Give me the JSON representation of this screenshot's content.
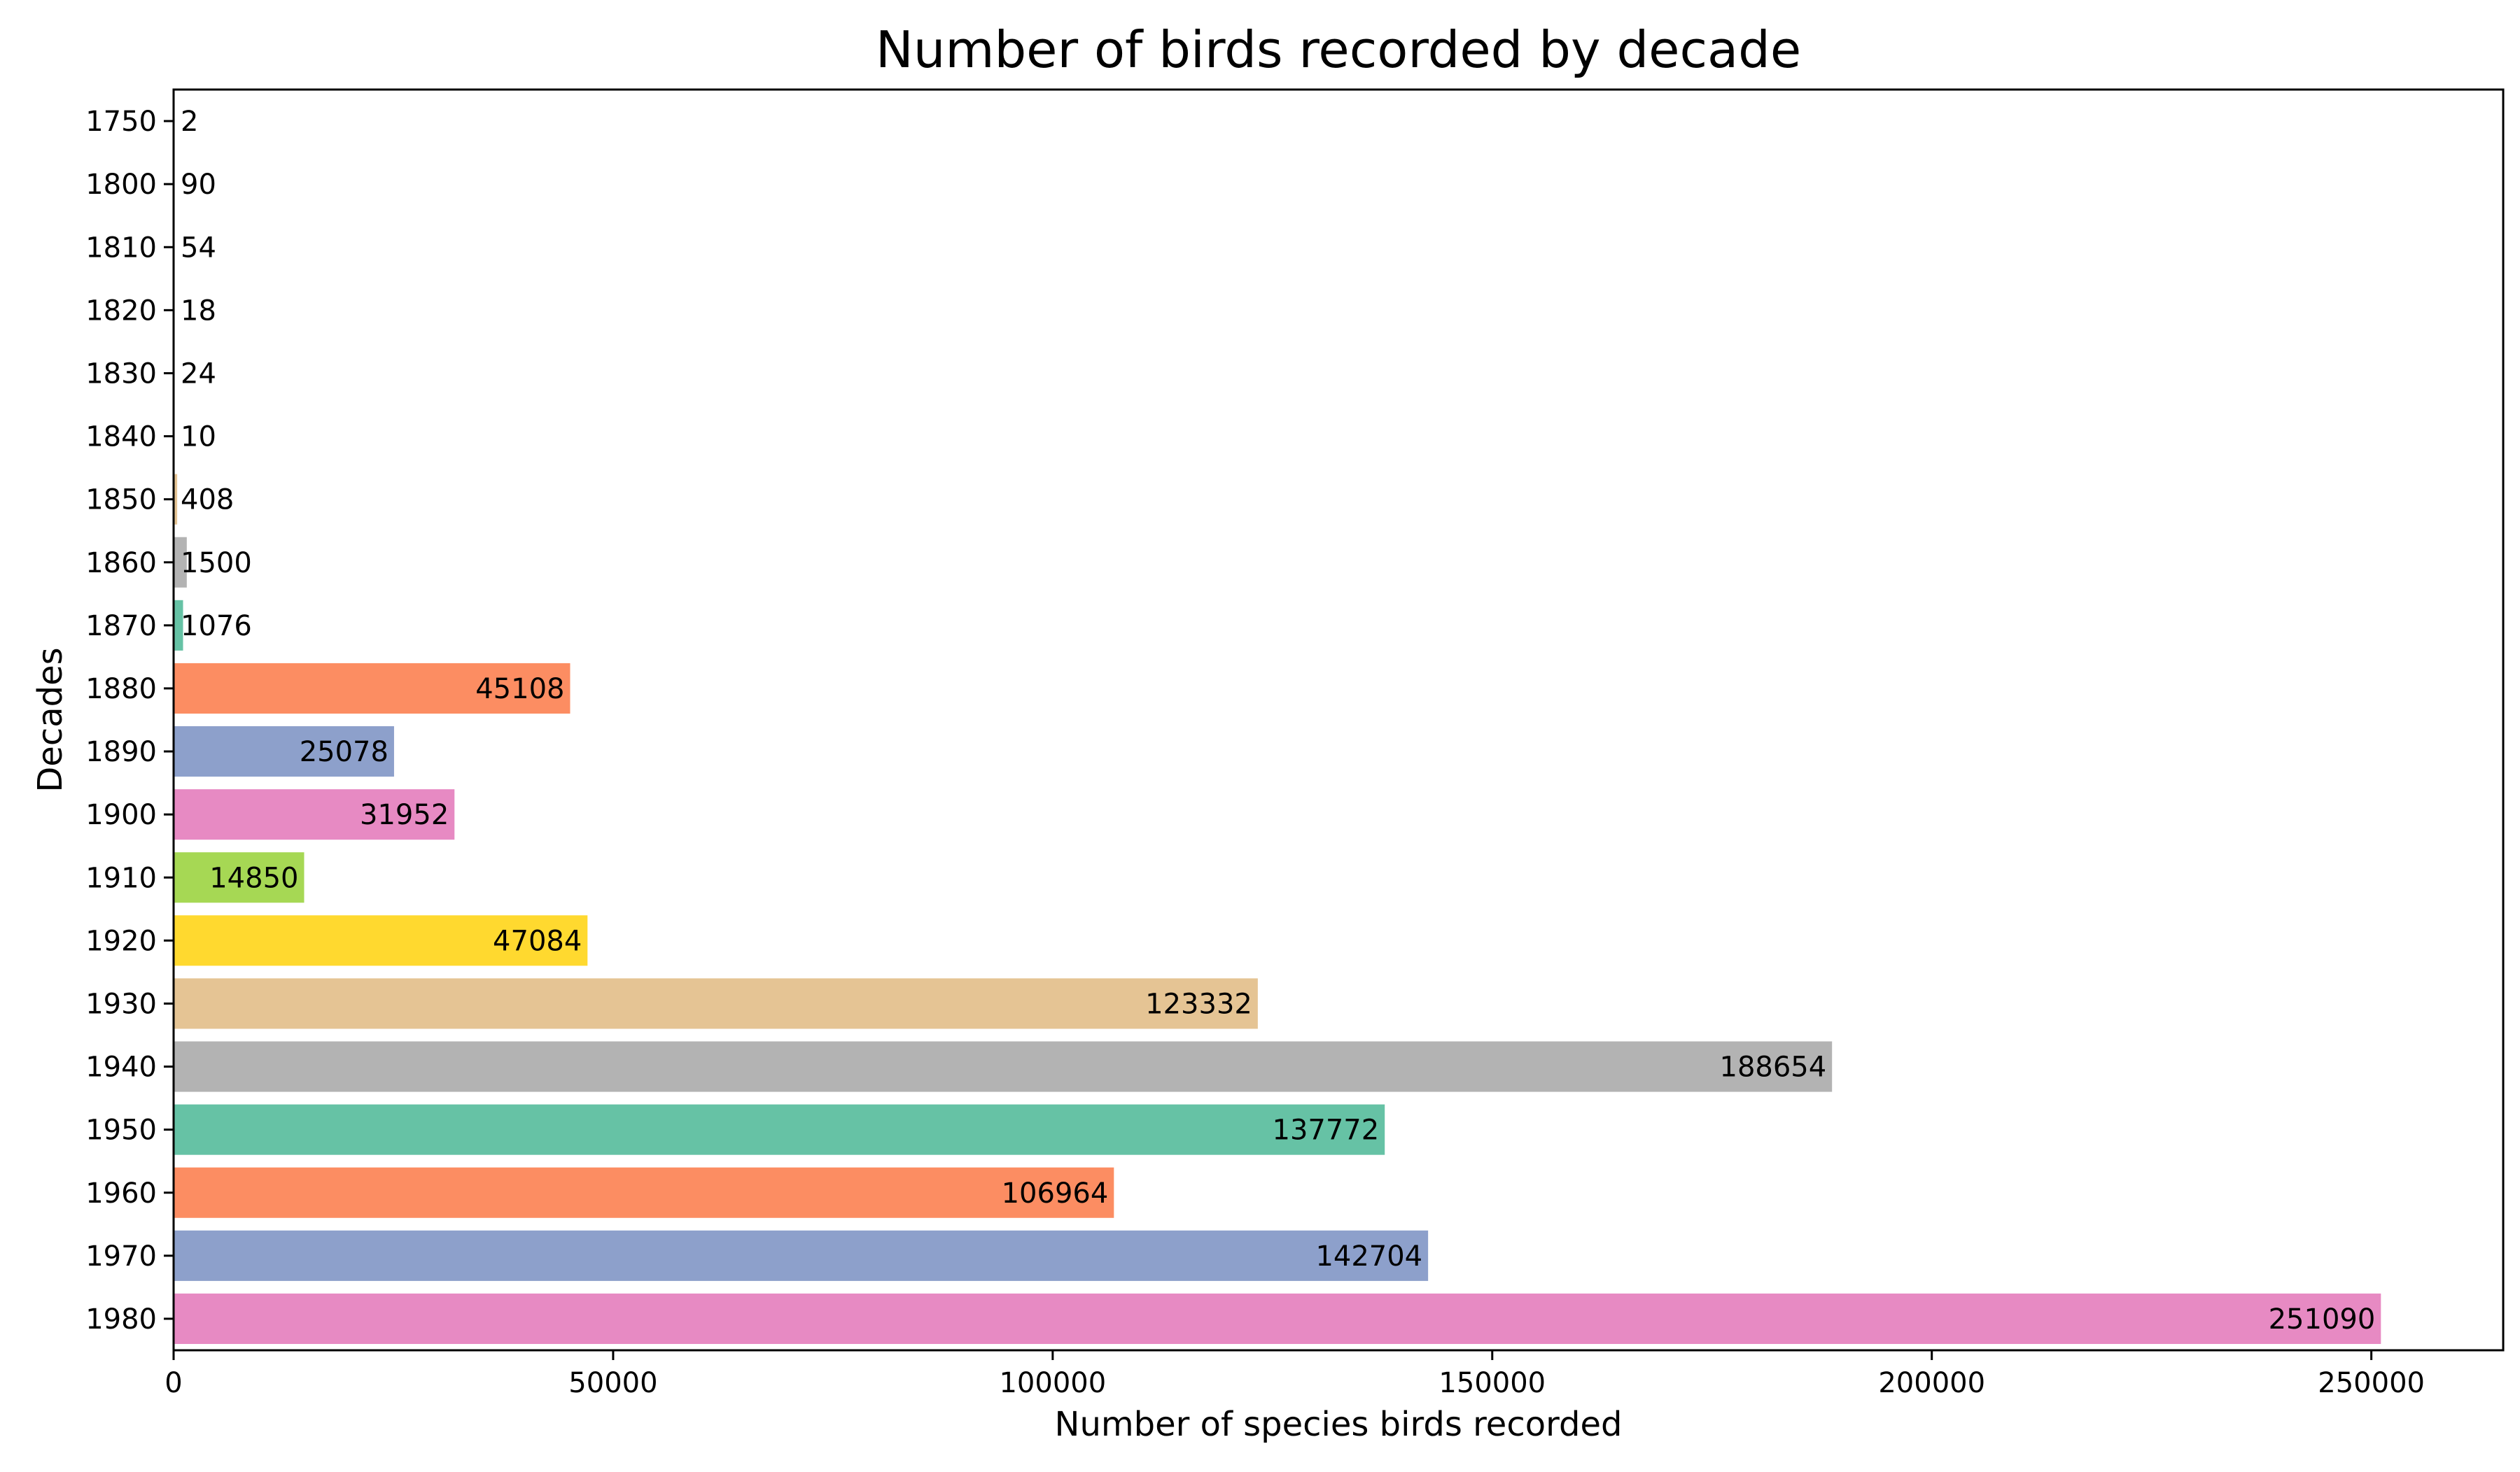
{
  "chart_data": {
    "type": "bar",
    "orientation": "horizontal",
    "title": "Number of birds recorded by decade",
    "xlabel": "Number of species birds recorded",
    "ylabel": "Decades",
    "xlim": [
      0,
      265000
    ],
    "xticks": [
      0,
      50000,
      100000,
      150000,
      200000,
      250000
    ],
    "grid": false,
    "categories": [
      "1750",
      "1800",
      "1810",
      "1820",
      "1830",
      "1840",
      "1850",
      "1860",
      "1870",
      "1880",
      "1890",
      "1900",
      "1910",
      "1920",
      "1930",
      "1940",
      "1950",
      "1960",
      "1970",
      "1980"
    ],
    "values": [
      2,
      90,
      54,
      18,
      24,
      10,
      408,
      1500,
      1076,
      45108,
      25078,
      31952,
      14850,
      47084,
      123332,
      188654,
      137772,
      106964,
      142704,
      251090
    ],
    "colors": [
      "#66c2a5",
      "#fc8d62",
      "#8da0cb",
      "#e78ac3",
      "#a6d854",
      "#ffd92f",
      "#e5c494",
      "#b3b3b3",
      "#66c2a5",
      "#fc8d62",
      "#8da0cb",
      "#e78ac3",
      "#a6d854",
      "#ffd92f",
      "#e5c494",
      "#b3b3b3",
      "#66c2a5",
      "#fc8d62",
      "#8da0cb",
      "#e78ac3"
    ]
  }
}
